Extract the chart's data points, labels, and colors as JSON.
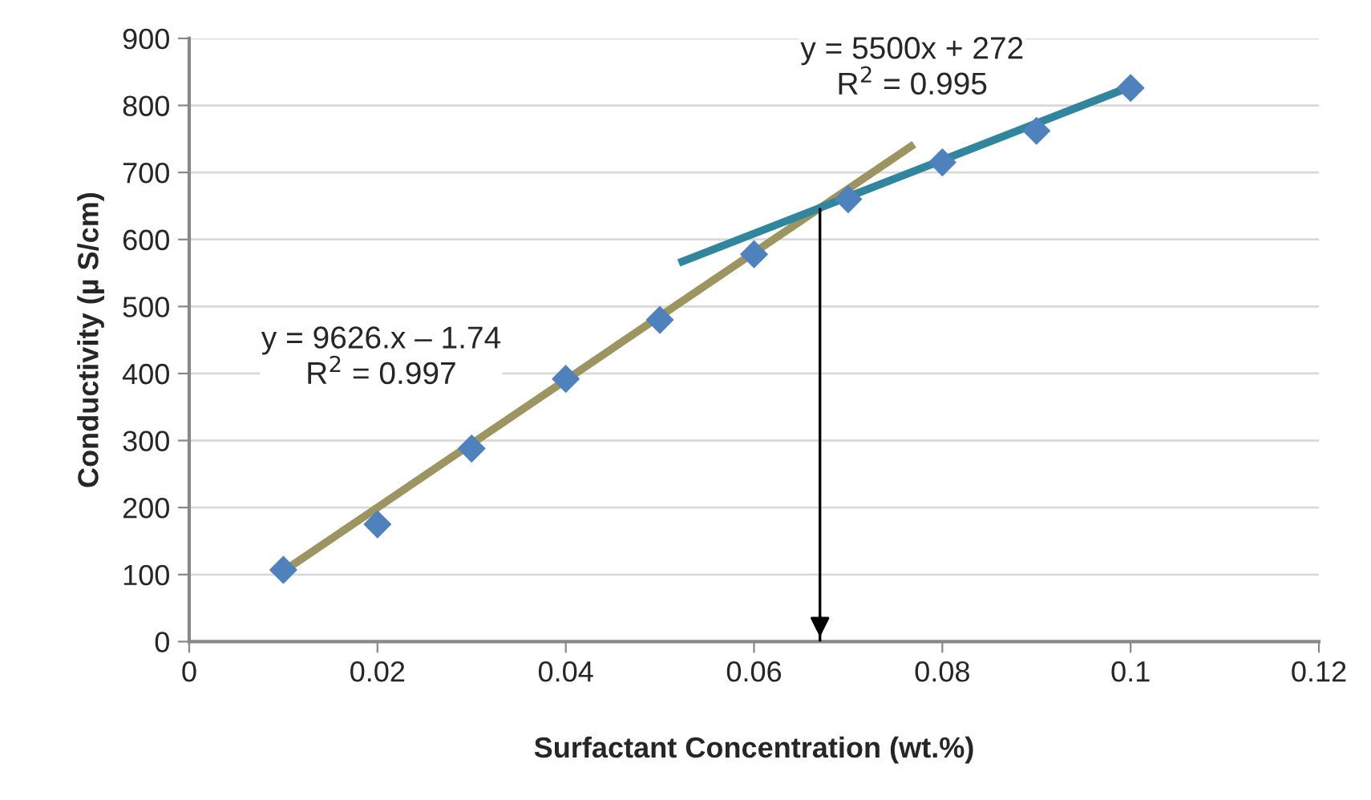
{
  "chart_data": {
    "type": "scatter",
    "xlabel": "Surfactant Concentration (wt.%)",
    "ylabel": "Conductivity (µ S/cm)",
    "xlim": [
      0,
      0.12
    ],
    "xticks": [
      0,
      0.02,
      0.04,
      0.06,
      0.08,
      0.1,
      0.12
    ],
    "ylim": [
      0,
      900
    ],
    "yticks": [
      0,
      100,
      200,
      300,
      400,
      500,
      600,
      700,
      800,
      900
    ],
    "grid": "y",
    "marker": "diamond",
    "legend": false,
    "series": [
      {
        "color": "#4f81bd",
        "x": [
          0.01,
          0.02,
          0.03,
          0.04,
          0.05,
          0.06,
          0.07,
          0.08,
          0.09,
          0.1
        ],
        "values": [
          107,
          175,
          288,
          392,
          480,
          578,
          660,
          715,
          762,
          826
        ]
      },
      {
        "type": "line",
        "marker": "none",
        "color": "#9c9461",
        "x": [
          0.01,
          0.077
        ],
        "values": [
          105,
          742
        ]
      },
      {
        "type": "line",
        "marker": "none",
        "color": "#31859c",
        "x": [
          0.052,
          0.1
        ],
        "values": [
          565,
          828
        ]
      }
    ],
    "ref_lines": [
      {
        "axis": "x",
        "value": 0.067,
        "color": "#000000"
      }
    ],
    "annotations": [
      "y = 9626.x – 1.74\nR$^{2}$ = 0.997",
      "y = 5500x + 272\nR$^{2}$ = 0.995"
    ]
  }
}
